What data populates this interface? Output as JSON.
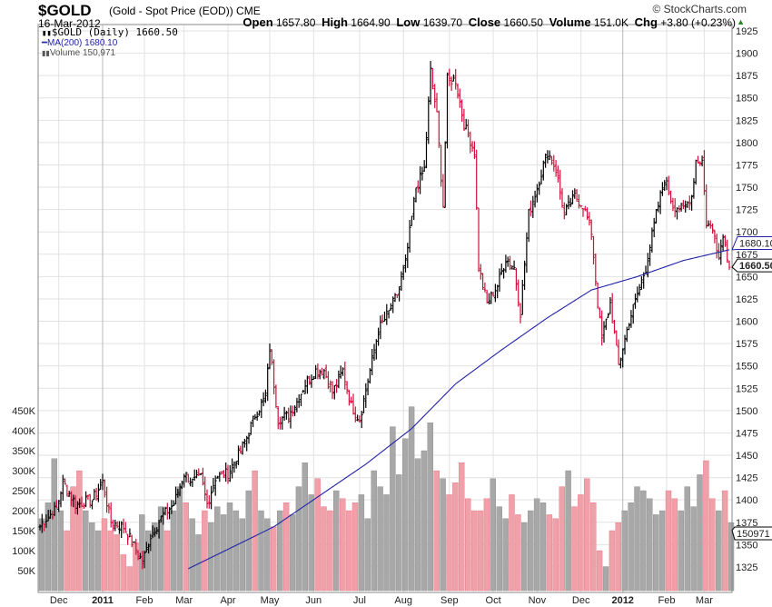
{
  "header": {
    "symbol": "$GOLD",
    "description": "(Gold - Spot Price (EOD)) CME",
    "date": "16-Mar-2012",
    "copyright": "© StockCharts.com",
    "open_label": "Open",
    "open": "1657.80",
    "high_label": "High",
    "high": "1664.90",
    "low_label": "Low",
    "low": "1639.70",
    "close_label": "Close",
    "close": "1660.50",
    "volume_label": "Volume",
    "volume": "151.0K",
    "chg_label": "Chg",
    "chg": "+3.80 (+0.23%)"
  },
  "legend": {
    "price": "$GOLD (Daily) 1660.50",
    "ma": "MA(200) 1680.10",
    "volume": "Volume 150,971"
  },
  "colors": {
    "up": "#000000",
    "down": "#d0103a",
    "ma": "#2222aa",
    "vol_up": "#a8a8a8",
    "vol_down": "#f0a0a8",
    "grid": "#e2e2e2"
  },
  "chart_data": {
    "type": "ohlc-bar+line+volume",
    "price_axis": {
      "min": 1312,
      "max": 1930,
      "ticks": [
        1325,
        1350,
        1375,
        1400,
        1425,
        1450,
        1475,
        1500,
        1525,
        1550,
        1575,
        1600,
        1625,
        1650,
        1675,
        1700,
        1725,
        1750,
        1775,
        1800,
        1825,
        1850,
        1875,
        1900,
        1925
      ]
    },
    "volume_axis": {
      "ticks": [
        "50K",
        "100K",
        "150K",
        "200K",
        "250K",
        "300K",
        "350K",
        "400K",
        "450K"
      ],
      "values": [
        50,
        100,
        150,
        200,
        250,
        300,
        350,
        400,
        450
      ]
    },
    "x_ticks": [
      {
        "label": "Dec",
        "day": 9
      },
      {
        "label": "2011",
        "day": 30,
        "bold": true
      },
      {
        "label": "Feb",
        "day": 50
      },
      {
        "label": "Mar",
        "day": 69
      },
      {
        "label": "Apr",
        "day": 90
      },
      {
        "label": "May",
        "day": 110
      },
      {
        "label": "Jun",
        "day": 131
      },
      {
        "label": "Jul",
        "day": 153
      },
      {
        "label": "Aug",
        "day": 174
      },
      {
        "label": "Sep",
        "day": 196
      },
      {
        "label": "Oct",
        "day": 217
      },
      {
        "label": "Nov",
        "day": 238
      },
      {
        "label": "Dec",
        "day": 259
      },
      {
        "label": "2012",
        "day": 279,
        "bold": true
      },
      {
        "label": "Feb",
        "day": 300
      },
      {
        "label": "Mar",
        "day": 318
      }
    ],
    "close_keypoints": [
      [
        0,
        1370
      ],
      [
        1,
        1375
      ],
      [
        8,
        1390
      ],
      [
        11,
        1420
      ],
      [
        17,
        1395
      ],
      [
        25,
        1400
      ],
      [
        30,
        1420
      ],
      [
        34,
        1375
      ],
      [
        40,
        1370
      ],
      [
        47,
        1340
      ],
      [
        49,
        1330
      ],
      [
        53,
        1360
      ],
      [
        58,
        1380
      ],
      [
        64,
        1395
      ],
      [
        69,
        1430
      ],
      [
        73,
        1420
      ],
      [
        77,
        1425
      ],
      [
        80,
        1395
      ],
      [
        84,
        1425
      ],
      [
        90,
        1430
      ],
      [
        95,
        1450
      ],
      [
        99,
        1470
      ],
      [
        103,
        1495
      ],
      [
        108,
        1515
      ],
      [
        110,
        1570
      ],
      [
        112,
        1530
      ],
      [
        114,
        1490
      ],
      [
        119,
        1495
      ],
      [
        123,
        1510
      ],
      [
        127,
        1530
      ],
      [
        132,
        1545
      ],
      [
        136,
        1545
      ],
      [
        140,
        1520
      ],
      [
        145,
        1545
      ],
      [
        149,
        1505
      ],
      [
        153,
        1490
      ],
      [
        158,
        1545
      ],
      [
        162,
        1590
      ],
      [
        167,
        1610
      ],
      [
        171,
        1630
      ],
      [
        175,
        1665
      ],
      [
        180,
        1750
      ],
      [
        184,
        1770
      ],
      [
        187,
        1880
      ],
      [
        190,
        1830
      ],
      [
        193,
        1730
      ],
      [
        195,
        1870
      ],
      [
        199,
        1870
      ],
      [
        203,
        1820
      ],
      [
        208,
        1790
      ],
      [
        210,
        1660
      ],
      [
        214,
        1620
      ],
      [
        219,
        1640
      ],
      [
        223,
        1670
      ],
      [
        227,
        1660
      ],
      [
        230,
        1610
      ],
      [
        234,
        1720
      ],
      [
        238,
        1750
      ],
      [
        243,
        1790
      ],
      [
        247,
        1770
      ],
      [
        251,
        1720
      ],
      [
        256,
        1740
      ],
      [
        260,
        1730
      ],
      [
        264,
        1700
      ],
      [
        267,
        1620
      ],
      [
        269,
        1580
      ],
      [
        273,
        1620
      ],
      [
        277,
        1550
      ],
      [
        282,
        1600
      ],
      [
        286,
        1630
      ],
      [
        290,
        1660
      ],
      [
        295,
        1720
      ],
      [
        299,
        1760
      ],
      [
        303,
        1730
      ],
      [
        308,
        1725
      ],
      [
        312,
        1740
      ],
      [
        314,
        1780
      ],
      [
        317,
        1780
      ],
      [
        319,
        1710
      ],
      [
        323,
        1700
      ],
      [
        325,
        1670
      ],
      [
        327,
        1700
      ],
      [
        330,
        1660
      ]
    ],
    "ma200_keypoints": [
      [
        71,
        1323
      ],
      [
        112,
        1370
      ],
      [
        156,
        1440
      ],
      [
        178,
        1480
      ],
      [
        199,
        1530
      ],
      [
        221,
        1568
      ],
      [
        243,
        1604
      ],
      [
        264,
        1635
      ],
      [
        286,
        1650
      ],
      [
        308,
        1668
      ],
      [
        330,
        1680
      ]
    ],
    "ma200_last": "1680.10",
    "last_price": "1660.50",
    "last_volume": "150971",
    "volume_k_every3days": [
      180,
      220,
      330,
      200,
      150,
      260,
      300,
      200,
      170,
      150,
      180,
      150,
      140,
      90,
      60,
      120,
      190,
      150,
      170,
      210,
      150,
      200,
      260,
      220,
      180,
      140,
      200,
      170,
      210,
      190,
      220,
      200,
      180,
      250,
      300,
      200,
      180,
      160,
      200,
      220,
      190,
      260,
      320,
      240,
      280,
      210,
      200,
      250,
      230,
      200,
      220,
      240,
      180,
      300,
      260,
      240,
      410,
      290,
      380,
      460,
      330,
      350,
      420,
      300,
      280,
      240,
      270,
      320,
      230,
      200,
      200,
      230,
      280,
      210,
      180,
      240,
      190,
      170,
      200,
      230,
      220,
      190,
      180,
      260,
      300,
      210,
      240,
      280,
      220,
      100,
      60,
      150,
      170,
      200,
      220,
      260,
      250,
      230,
      190,
      200,
      250,
      230,
      200,
      260,
      210,
      290,
      325,
      230,
      200,
      250,
      170
    ]
  }
}
